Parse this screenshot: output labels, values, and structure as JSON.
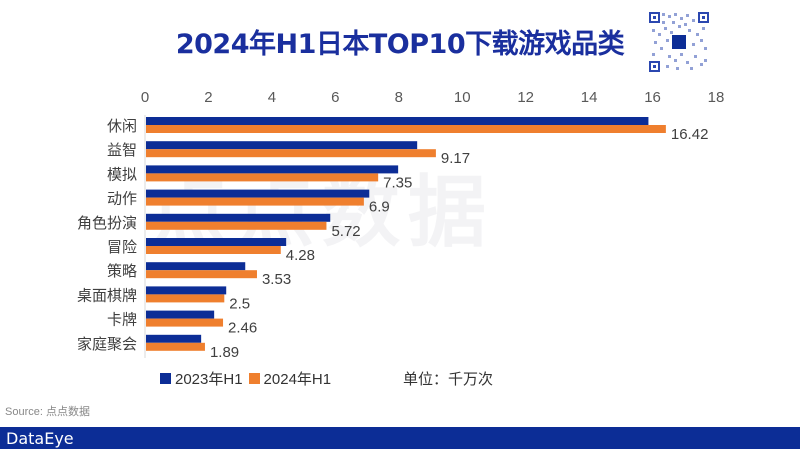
{
  "header": {
    "title": "2024年H1日本TOP10下载游戏品类"
  },
  "watermark": "点点数据",
  "legend": {
    "series_2023": "2023年H1",
    "series_2024": "2024年H1"
  },
  "unit": "单位：千万次",
  "source": "Source: 点点数据",
  "footer": {
    "brand": "DataEye"
  },
  "colors": {
    "series_2023": "#0c2d96",
    "series_2024": "#ef7f2e",
    "title": "#1a2f9e",
    "footer": "#0c2d96"
  },
  "chart_data": {
    "type": "bar",
    "orientation": "horizontal",
    "title": "2024年H1日本TOP10下载游戏品类",
    "xlabel": "",
    "ylabel": "",
    "unit": "千万次",
    "xlim": [
      0,
      18
    ],
    "x_ticks": [
      "0",
      "2",
      "4",
      "6",
      "8",
      "10",
      "12",
      "14",
      "16",
      "18"
    ],
    "x_axis_position": "top",
    "grid": false,
    "legend_position": "bottom",
    "categories": [
      "休闲",
      "益智",
      "模拟",
      "动作",
      "角色扮演",
      "冒险",
      "策略",
      "桌面棋牌",
      "卡牌",
      "家庭聚会"
    ],
    "series": [
      {
        "name": "2023年H1",
        "values": [
          15.87,
          8.58,
          7.98,
          7.07,
          5.84,
          4.45,
          3.16,
          2.56,
          2.18,
          1.77
        ],
        "labeled": false
      },
      {
        "name": "2024年H1",
        "values": [
          16.42,
          9.17,
          7.35,
          6.9,
          5.72,
          4.28,
          3.53,
          2.5,
          2.46,
          1.89
        ],
        "labeled": true
      }
    ],
    "data_labels": [
      "16.42",
      "9.17",
      "7.35",
      "6.9",
      "5.72",
      "4.28",
      "3.53",
      "2.5",
      "2.46",
      "1.89"
    ]
  }
}
